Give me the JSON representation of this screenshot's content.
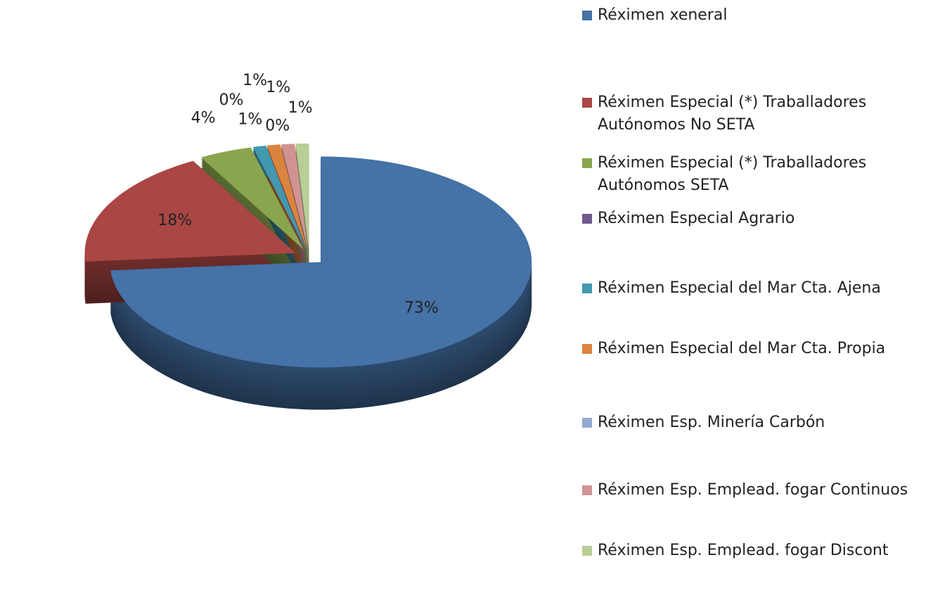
{
  "chart_data": {
    "type": "pie",
    "categories": [
      "Réximen xeneral",
      "Réximen Especial (*) Traballadores Autónomos  No SETA",
      "Réximen Especial (*) Traballadores Autónomos  SETA",
      "Réximen Especial  Agrario",
      "Réximen Especial del Mar Cta. Ajena",
      "Réximen Especial del Mar Cta. Propia",
      "Réximen  Esp. Minería Carbón",
      "Réximen Esp. Emplead. fogar Continuos",
      "Réximen Esp. Emplead. fogar Discont"
    ],
    "values": [
      73,
      18,
      4,
      0,
      1,
      1,
      0,
      1,
      1
    ],
    "value_labels": [
      "73%",
      "18%",
      "4%",
      "0%",
      "1%",
      "1%",
      "0%",
      "1%",
      "1%"
    ],
    "colors": [
      "#4572a7",
      "#aa4643",
      "#89a54e",
      "#71588f",
      "#4198af",
      "#db843d",
      "#93a9cf",
      "#d19392",
      "#b9cd96"
    ],
    "legend": "right"
  }
}
